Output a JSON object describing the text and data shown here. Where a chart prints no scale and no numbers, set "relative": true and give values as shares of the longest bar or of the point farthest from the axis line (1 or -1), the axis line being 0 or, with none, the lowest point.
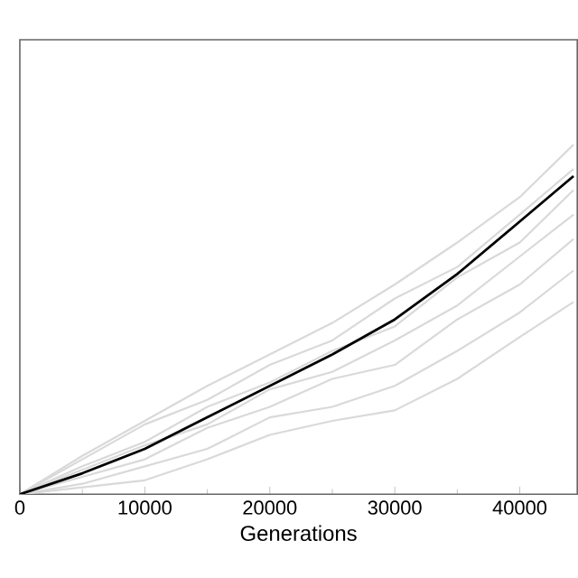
{
  "chart_data": {
    "type": "line",
    "xlabel": "Generations",
    "relative": true,
    "x": [
      0,
      5000,
      10000,
      15000,
      20000,
      25000,
      30000,
      35000,
      40000,
      44300
    ],
    "xlim": [
      0,
      44600
    ],
    "xticks": [
      0,
      10000,
      20000,
      30000,
      40000
    ],
    "grid": false,
    "marker": "none",
    "line_style": "solid",
    "series": [
      {
        "color": "#d9d9d9",
        "values": [
          0,
          0.02,
          0.04,
          0.1,
          0.17,
          0.21,
          0.24,
          0.33,
          0.45,
          0.55
        ]
      },
      {
        "color": "#d9d9d9",
        "values": [
          0,
          0.03,
          0.08,
          0.13,
          0.22,
          0.25,
          0.31,
          0.41,
          0.52,
          0.64
        ]
      },
      {
        "color": "#d9d9d9",
        "values": [
          0,
          0.05,
          0.1,
          0.19,
          0.25,
          0.33,
          0.37,
          0.5,
          0.6,
          0.73
        ]
      },
      {
        "color": "#d9d9d9",
        "values": [
          0,
          0.07,
          0.14,
          0.2,
          0.3,
          0.35,
          0.44,
          0.54,
          0.68,
          0.8
        ]
      },
      {
        "color": "#d9d9d9",
        "values": [
          0,
          0.08,
          0.15,
          0.25,
          0.32,
          0.41,
          0.48,
          0.62,
          0.72,
          0.87
        ]
      },
      {
        "color": "#d9d9d9",
        "values": [
          0,
          0.1,
          0.2,
          0.27,
          0.37,
          0.44,
          0.56,
          0.65,
          0.8,
          0.93
        ]
      },
      {
        "color": "#d9d9d9",
        "values": [
          0,
          0.11,
          0.21,
          0.31,
          0.4,
          0.49,
          0.6,
          0.72,
          0.85,
          1
        ]
      },
      {
        "color": "#000000",
        "values": [
          0,
          0.06,
          0.13,
          0.22,
          0.31,
          0.4,
          0.5,
          0.63,
          0.78,
          0.91
        ]
      }
    ]
  }
}
